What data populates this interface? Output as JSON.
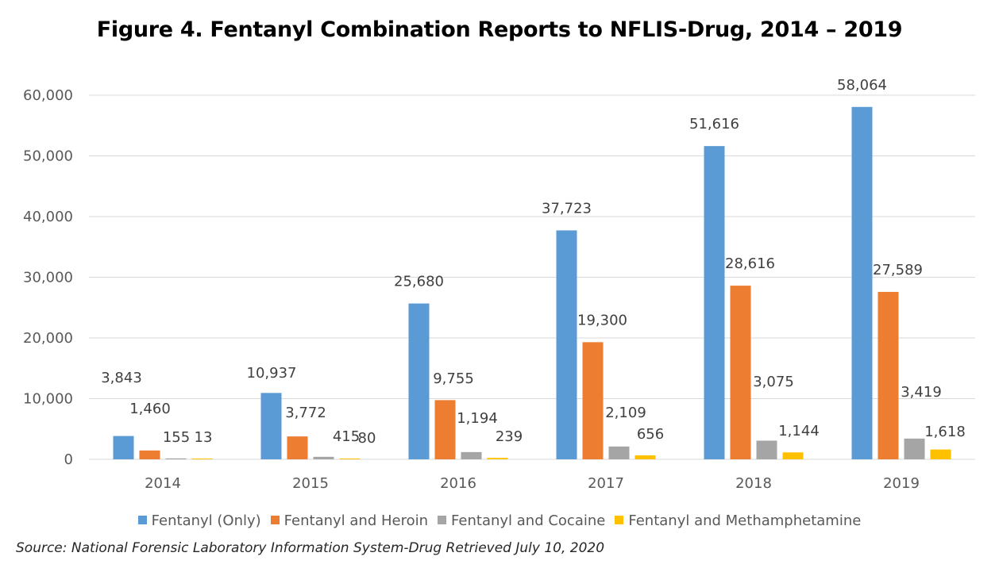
{
  "chart_data": {
    "type": "bar",
    "title": "Figure 4. Fentanyl Combination Reports to NFLIS-Drug, 2014 – 2019",
    "categories": [
      "2014",
      "2015",
      "2016",
      "2017",
      "2018",
      "2019"
    ],
    "series": [
      {
        "name": "Fentanyl (Only)",
        "color": "#5B9BD5",
        "values": [
          3843,
          10937,
          25680,
          37723,
          51616,
          58064
        ],
        "labels": [
          "3,843",
          "10,937",
          "25,680",
          "37,723",
          "51,616",
          "58,064"
        ]
      },
      {
        "name": "Fentanyl and Heroin",
        "color": "#ED7D31",
        "values": [
          1460,
          3772,
          9755,
          19300,
          28616,
          27589
        ],
        "labels": [
          "1,460",
          "3,772",
          "9,755",
          "19,300",
          "28,616",
          "27,589"
        ]
      },
      {
        "name": "Fentanyl and Cocaine",
        "color": "#A5A5A5",
        "values": [
          155,
          415,
          1194,
          2109,
          3075,
          3419
        ],
        "labels": [
          "155",
          "415",
          "1,194",
          "2,109",
          "3,075",
          "3,419"
        ]
      },
      {
        "name": "Fentanyl and Methamphetamine",
        "color": "#FFC000",
        "values": [
          13,
          80,
          239,
          656,
          1144,
          1618
        ],
        "labels": [
          "13",
          "80",
          "239",
          "656",
          "1,144",
          "1,618"
        ]
      }
    ],
    "ylim": [
      0,
      60000
    ],
    "yticks": [
      0,
      10000,
      20000,
      30000,
      40000,
      50000,
      60000
    ],
    "ytick_labels": [
      "0",
      "10,000",
      "20,000",
      "30,000",
      "40,000",
      "50,000",
      "60,000"
    ],
    "grid": true,
    "legend": "bottom"
  },
  "source": "Source: National Forensic Laboratory Information System-Drug Retrieved July 10, 2020"
}
